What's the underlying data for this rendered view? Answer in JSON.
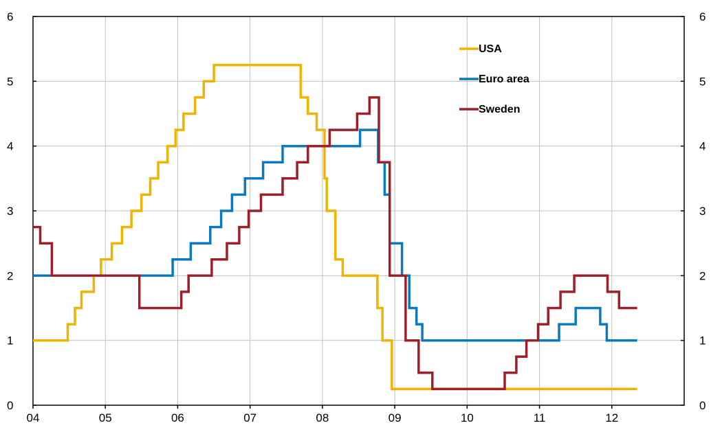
{
  "chart_data": {
    "type": "line",
    "xlim": [
      2004,
      2013
    ],
    "ylim": [
      0,
      6
    ],
    "grid": true,
    "legend_placement": "top-right",
    "x_ticks": [
      2004,
      2005,
      2006,
      2007,
      2008,
      2009,
      2010,
      2011,
      2012
    ],
    "x_tick_labels": [
      "04",
      "05",
      "06",
      "07",
      "08",
      "09",
      "10",
      "11",
      "12"
    ],
    "y_ticks": [
      0,
      1,
      2,
      3,
      4,
      5,
      6
    ],
    "y_tick_labels": [
      "0",
      "1",
      "2",
      "3",
      "4",
      "5",
      "6"
    ],
    "series": [
      {
        "name": "USA",
        "color": "#f0b400",
        "steps": [
          [
            2004.0,
            1.0
          ],
          [
            2004.48,
            1.25
          ],
          [
            2004.58,
            1.5
          ],
          [
            2004.67,
            1.75
          ],
          [
            2004.84,
            2.0
          ],
          [
            2004.94,
            2.25
          ],
          [
            2005.09,
            2.5
          ],
          [
            2005.23,
            2.75
          ],
          [
            2005.36,
            3.0
          ],
          [
            2005.5,
            3.25
          ],
          [
            2005.62,
            3.5
          ],
          [
            2005.73,
            3.75
          ],
          [
            2005.86,
            4.0
          ],
          [
            2005.97,
            4.25
          ],
          [
            2006.08,
            4.5
          ],
          [
            2006.24,
            4.75
          ],
          [
            2006.36,
            5.0
          ],
          [
            2006.5,
            5.25
          ],
          [
            2007.7,
            4.75
          ],
          [
            2007.8,
            4.5
          ],
          [
            2007.92,
            4.25
          ],
          [
            2008.03,
            3.5
          ],
          [
            2008.06,
            3.0
          ],
          [
            2008.18,
            2.25
          ],
          [
            2008.28,
            2.0
          ],
          [
            2008.76,
            1.5
          ],
          [
            2008.83,
            1.0
          ],
          [
            2008.96,
            0.25
          ],
          [
            2012.35,
            0.25
          ]
        ]
      },
      {
        "name": "Euro area",
        "color": "#0a7ac0",
        "steps": [
          [
            2004.0,
            2.0
          ],
          [
            2005.93,
            2.25
          ],
          [
            2006.18,
            2.5
          ],
          [
            2006.45,
            2.75
          ],
          [
            2006.6,
            3.0
          ],
          [
            2006.75,
            3.25
          ],
          [
            2006.93,
            3.5
          ],
          [
            2007.18,
            3.75
          ],
          [
            2007.45,
            4.0
          ],
          [
            2008.52,
            4.25
          ],
          [
            2008.77,
            3.75
          ],
          [
            2008.86,
            3.25
          ],
          [
            2008.93,
            2.5
          ],
          [
            2009.1,
            2.0
          ],
          [
            2009.2,
            1.5
          ],
          [
            2009.3,
            1.25
          ],
          [
            2009.38,
            1.0
          ],
          [
            2011.27,
            1.25
          ],
          [
            2011.5,
            1.5
          ],
          [
            2011.84,
            1.25
          ],
          [
            2011.93,
            1.0
          ],
          [
            2012.35,
            1.0
          ]
        ]
      },
      {
        "name": "Sweden",
        "color": "#a01e28",
        "steps": [
          [
            2004.0,
            2.75
          ],
          [
            2004.1,
            2.5
          ],
          [
            2004.26,
            2.0
          ],
          [
            2005.47,
            1.5
          ],
          [
            2006.05,
            1.75
          ],
          [
            2006.15,
            2.0
          ],
          [
            2006.47,
            2.25
          ],
          [
            2006.68,
            2.5
          ],
          [
            2006.85,
            2.75
          ],
          [
            2006.98,
            3.0
          ],
          [
            2007.15,
            3.25
          ],
          [
            2007.45,
            3.5
          ],
          [
            2007.65,
            3.75
          ],
          [
            2007.8,
            4.0
          ],
          [
            2008.1,
            4.25
          ],
          [
            2008.48,
            4.5
          ],
          [
            2008.65,
            4.75
          ],
          [
            2008.78,
            3.75
          ],
          [
            2008.93,
            2.0
          ],
          [
            2009.15,
            1.0
          ],
          [
            2009.33,
            0.5
          ],
          [
            2009.52,
            0.25
          ],
          [
            2010.52,
            0.5
          ],
          [
            2010.68,
            0.75
          ],
          [
            2010.82,
            1.0
          ],
          [
            2010.98,
            1.25
          ],
          [
            2011.12,
            1.5
          ],
          [
            2011.29,
            1.75
          ],
          [
            2011.48,
            2.0
          ],
          [
            2011.94,
            1.75
          ],
          [
            2012.1,
            1.5
          ],
          [
            2012.35,
            1.5
          ]
        ]
      }
    ]
  }
}
